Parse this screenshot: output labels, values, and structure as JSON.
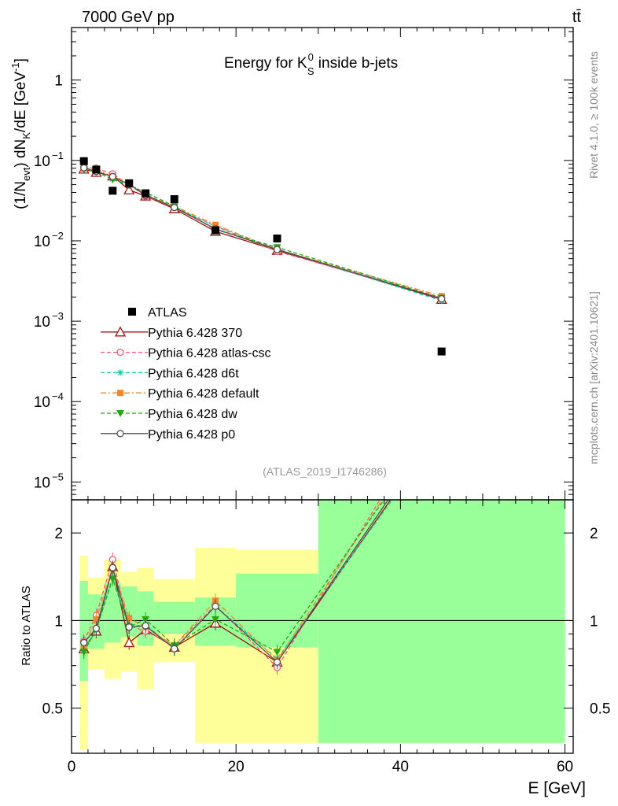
{
  "header": {
    "left_label": "7000 GeV pp",
    "right_label": "tt̄"
  },
  "side_labels": {
    "rivet": "Rivet 4.1.0, ≥ 100k events",
    "mcplots": "mcplots.cern.ch [arXiv:2401.10621]"
  },
  "watermark": "(ATLAS_2019_I1746286)",
  "chart_data": [
    {
      "type": "line",
      "title": "Energy for K_S^0 inside b-jets",
      "title_parts": {
        "before": "Energy for K",
        "sup": "0",
        "sub": "S",
        "after": " inside b-jets"
      },
      "ylabel": "(1/N_evt) dN_K/dE [GeV^-1]",
      "ylabel_parts": {
        "a": "(1/N",
        "a_sub": "evt",
        "b": ") dN",
        "b_sub": "K",
        "c": "/dE [GeV",
        "c_sup": "-1",
        "d": "]"
      },
      "yscale": "log",
      "ylim": [
        6e-06,
        4.5
      ],
      "xlim": [
        0,
        61
      ],
      "yticks": [
        {
          "value": 1,
          "label": "1",
          "sup": ""
        },
        {
          "value": 0.1,
          "label": "10",
          "sup": "−1"
        },
        {
          "value": 0.01,
          "label": "10",
          "sup": "−2"
        },
        {
          "value": 0.001,
          "label": "10",
          "sup": "−3"
        },
        {
          "value": 0.0001,
          "label": "10",
          "sup": "−4"
        },
        {
          "value": 1e-05,
          "label": "10",
          "sup": "−5"
        }
      ],
      "legend_position": "middle-left",
      "bin_edges": [
        1,
        2,
        4,
        6,
        8,
        10,
        15,
        20,
        30,
        60
      ],
      "x": [
        1.5,
        3,
        5,
        7,
        9,
        12.5,
        17.5,
        25,
        45
      ],
      "atlas": {
        "name": "ATLAS",
        "values": [
          0.098,
          0.077,
          0.042,
          0.052,
          0.039,
          0.033,
          0.0135,
          0.0107,
          0.00042
        ]
      },
      "series": [
        {
          "name": "Pythia 6.428 370",
          "color": "#a01010",
          "marker": "triangle-open",
          "dash": "solid",
          "values": [
            0.078,
            0.071,
            0.064,
            0.043,
            0.036,
            0.025,
            0.0131,
            0.0076,
            0.00187
          ]
        },
        {
          "name": "Pythia 6.428 atlas-csc",
          "color": "#ef5a7c",
          "marker": "circle-open",
          "dash": "dashed",
          "values": [
            0.082,
            0.08,
            0.068,
            0.05,
            0.036,
            0.026,
            0.0152,
            0.0074,
            0.00195
          ]
        },
        {
          "name": "Pythia 6.428 d6t",
          "color": "#22c9a5",
          "marker": "asterisk",
          "dash": "dashed",
          "values": [
            0.078,
            0.072,
            0.059,
            0.05,
            0.038,
            0.026,
            0.0152,
            0.0079,
            0.0018
          ]
        },
        {
          "name": "Pythia 6.428 default",
          "color": "#f5872a",
          "marker": "square",
          "dash": "dashdot",
          "values": [
            0.08,
            0.078,
            0.063,
            0.053,
            0.037,
            0.027,
            0.0158,
            0.0078,
            0.00205
          ]
        },
        {
          "name": "Pythia 6.428 dw",
          "color": "#22aa10",
          "marker": "triangle-down",
          "dash": "dashed",
          "values": [
            0.077,
            0.072,
            0.058,
            0.049,
            0.04,
            0.027,
            0.0138,
            0.0083,
            0.00195
          ]
        },
        {
          "name": "Pythia 6.428 p0",
          "color": "#505050",
          "marker": "circle-open",
          "dash": "solid",
          "values": [
            0.081,
            0.073,
            0.063,
            0.05,
            0.037,
            0.026,
            0.0141,
            0.0078,
            0.0019
          ]
        }
      ]
    },
    {
      "type": "line",
      "title": "",
      "xlabel": "E [GeV]",
      "ylabel": "Ratio to ATLAS",
      "yscale": "log",
      "ylim": [
        0.35,
        2.6
      ],
      "xlim": [
        0,
        61
      ],
      "xticks": [
        0,
        20,
        40,
        60
      ],
      "yticks": [
        0.5,
        1,
        2
      ],
      "reference_line": 1,
      "uncertainty_bands": [
        {
          "x0": 1,
          "x1": 2,
          "green": [
            0.62,
            1.37
          ],
          "yellow": [
            0.36,
            1.67
          ]
        },
        {
          "x0": 2,
          "x1": 4,
          "green": [
            0.8,
            1.23
          ],
          "yellow": [
            0.68,
            1.41
          ]
        },
        {
          "x0": 4,
          "x1": 6,
          "green": [
            0.84,
            1.35
          ],
          "yellow": [
            0.63,
            1.62
          ]
        },
        {
          "x0": 6,
          "x1": 8,
          "green": [
            0.88,
            1.31
          ],
          "yellow": [
            0.67,
            1.47
          ]
        },
        {
          "x0": 8,
          "x1": 10,
          "green": [
            0.82,
            1.26
          ],
          "yellow": [
            0.58,
            1.52
          ]
        },
        {
          "x0": 10,
          "x1": 15,
          "green": [
            0.9,
            1.16
          ],
          "yellow": [
            0.72,
            1.39
          ]
        },
        {
          "x0": 15,
          "x1": 20,
          "green": [
            0.82,
            1.2
          ],
          "yellow": [
            0.38,
            1.78
          ]
        },
        {
          "x0": 20,
          "x1": 30,
          "green": [
            0.81,
            1.45
          ],
          "yellow": [
            0.38,
            1.75
          ]
        },
        {
          "x0": 30,
          "x1": 60,
          "green": [
            0.38,
            2.6
          ],
          "yellow": [
            0.38,
            2.6
          ]
        }
      ],
      "series": [
        {
          "name": "Pythia 6.428 370",
          "color": "#a01010",
          "marker": "triangle-open",
          "dash": "solid",
          "x": [
            1.5,
            3,
            5,
            7,
            9,
            12.5,
            17.5,
            25,
            38.8
          ],
          "values": [
            0.8,
            0.92,
            1.53,
            0.84,
            0.93,
            0.81,
            0.98,
            0.72,
            2.6
          ]
        },
        {
          "name": "Pythia 6.428 atlas-csc",
          "color": "#ef5a7c",
          "marker": "circle-open",
          "dash": "dashed",
          "x": [
            1.5,
            3,
            5,
            7,
            9,
            12.5,
            17.5,
            25,
            37.5
          ],
          "values": [
            0.85,
            1.04,
            1.62,
            0.96,
            0.92,
            0.82,
            1.13,
            0.69,
            2.6
          ]
        },
        {
          "name": "Pythia 6.428 d6t",
          "color": "#22c9a5",
          "marker": "asterisk",
          "dash": "dashed",
          "x": [
            1.5,
            3,
            5,
            7,
            9,
            12.5,
            17.5,
            25,
            39.0
          ],
          "values": [
            0.79,
            0.93,
            1.41,
            0.95,
            0.97,
            0.8,
            1.12,
            0.74,
            2.6
          ]
        },
        {
          "name": "Pythia 6.428 default",
          "color": "#f5872a",
          "marker": "square",
          "dash": "dashdot",
          "x": [
            1.5,
            3,
            5,
            7,
            9,
            12.5,
            17.5,
            25,
            37.8
          ],
          "values": [
            0.82,
            1.01,
            1.52,
            1.02,
            0.95,
            0.82,
            1.17,
            0.73,
            2.6
          ]
        },
        {
          "name": "Pythia 6.428 dw",
          "color": "#22aa10",
          "marker": "triangle-down",
          "dash": "dashed",
          "x": [
            1.5,
            3,
            5,
            7,
            9,
            12.5,
            17.5,
            25,
            38.0
          ],
          "values": [
            0.78,
            0.93,
            1.39,
            0.95,
            1.01,
            0.82,
            1.01,
            0.78,
            2.6
          ]
        },
        {
          "name": "Pythia 6.428 p0",
          "color": "#505050",
          "marker": "circle-open",
          "dash": "solid",
          "x": [
            1.5,
            3,
            5,
            7,
            9,
            12.5,
            17.5,
            25,
            38.5
          ],
          "values": [
            0.84,
            0.94,
            1.52,
            0.95,
            0.96,
            0.8,
            1.12,
            0.72,
            2.6
          ]
        }
      ]
    }
  ]
}
